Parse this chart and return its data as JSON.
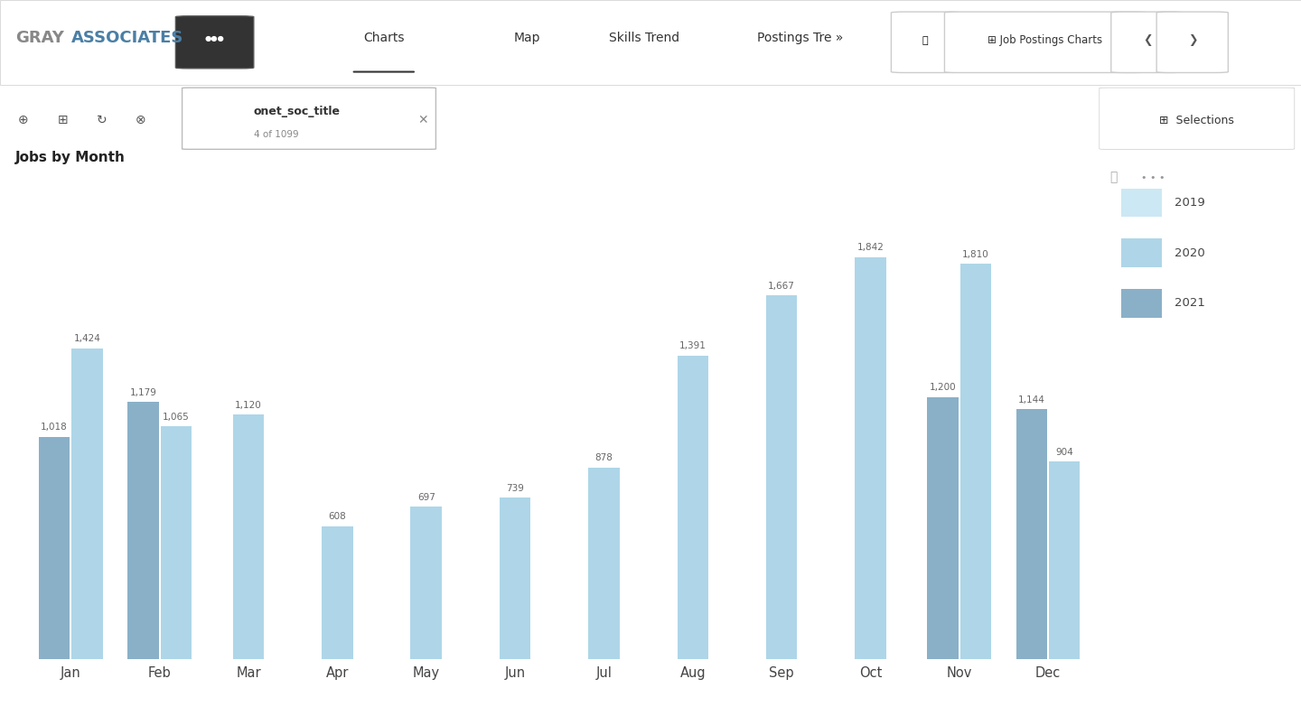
{
  "months": [
    "Jan",
    "Feb",
    "Mar",
    "Apr",
    "May",
    "Jun",
    "Jul",
    "Aug",
    "Sep",
    "Oct",
    "Nov",
    "Dec"
  ],
  "data_2020": [
    1424,
    1065,
    1120,
    608,
    697,
    739,
    878,
    1391,
    1667,
    1842,
    1810,
    904
  ],
  "data_2021": [
    1018,
    1179,
    null,
    null,
    null,
    null,
    null,
    null,
    null,
    null,
    1200,
    1144
  ],
  "color_2020": "#aed6e8",
  "color_2021": "#8ab0c8",
  "color_2019_legend": "#cce8f4",
  "title": "Jobs by Month",
  "bar_width": 0.35,
  "bg_white": "#ffffff",
  "bg_light_gray": "#f0f0f0",
  "bg_toolbar": "#e8e8e8",
  "header_bg": "#f5f5f5",
  "ylim_max": 2200,
  "value_label_fontsize": 7.5,
  "xlabel_fontsize": 10.5,
  "legend_fontsize": 9.5,
  "title_fontsize": 11
}
